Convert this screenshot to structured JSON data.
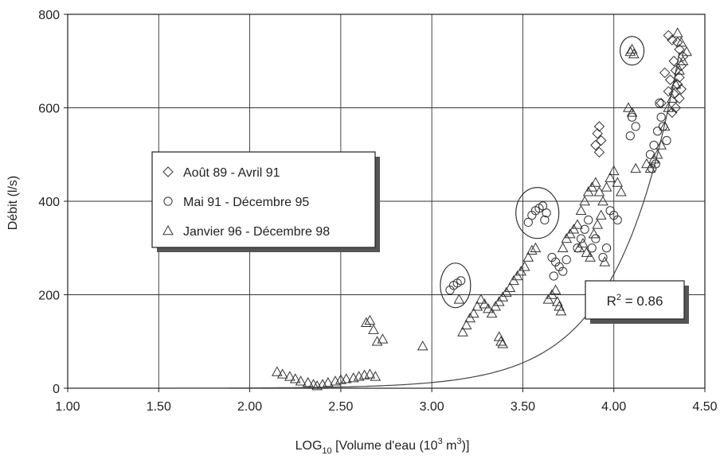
{
  "chart_data": {
    "type": "scatter",
    "xlabel": {
      "main": "LOG",
      "sub": "10",
      "rest": " [Volume d'eau (10",
      "sup1": "3",
      "mid": " m",
      "sup2": "3",
      "end": ")]"
    },
    "ylabel": "Débit (l/s)",
    "xlim": [
      1.0,
      4.5
    ],
    "ylim": [
      0,
      800
    ],
    "x_ticks": [
      1.0,
      1.5,
      2.0,
      2.5,
      3.0,
      3.5,
      4.0,
      4.5
    ],
    "x_tick_labels": [
      "1.00",
      "1.50",
      "2.00",
      "2.50",
      "3.00",
      "3.50",
      "4.00",
      "4.50"
    ],
    "y_ticks": [
      0,
      200,
      400,
      600,
      800
    ],
    "y_tick_labels": [
      "0",
      "200",
      "400",
      "600",
      "800"
    ],
    "grid": true,
    "legend_position": "middle-left",
    "annotation": {
      "main": "R",
      "sup": "2",
      "rest": " = 0.86"
    },
    "series": [
      {
        "name": "Août 89 - Avril 91",
        "marker": "diamond",
        "points": [
          [
            3.92,
            560
          ],
          [
            3.91,
            545
          ],
          [
            3.93,
            530
          ],
          [
            3.9,
            520
          ],
          [
            3.92,
            505
          ],
          [
            4.3,
            755
          ],
          [
            4.32,
            745
          ],
          [
            4.35,
            740
          ],
          [
            4.36,
            725
          ],
          [
            4.38,
            710
          ],
          [
            4.33,
            700
          ],
          [
            4.37,
            690
          ],
          [
            4.34,
            680
          ],
          [
            4.36,
            665
          ],
          [
            4.31,
            660
          ],
          [
            4.35,
            650
          ],
          [
            4.37,
            640
          ],
          [
            4.33,
            630
          ],
          [
            4.36,
            620
          ],
          [
            4.28,
            675
          ],
          [
            4.3,
            635
          ],
          [
            4.26,
            610
          ],
          [
            4.34,
            600
          ],
          [
            4.32,
            590
          ]
        ]
      },
      {
        "name": "Mai 91 - Décembre 95",
        "marker": "circle",
        "points": [
          [
            3.1,
            210
          ],
          [
            3.12,
            220
          ],
          [
            3.14,
            225
          ],
          [
            3.16,
            230
          ],
          [
            3.53,
            355
          ],
          [
            3.55,
            370
          ],
          [
            3.57,
            380
          ],
          [
            3.59,
            385
          ],
          [
            3.61,
            390
          ],
          [
            3.63,
            375
          ],
          [
            3.62,
            360
          ],
          [
            3.66,
            280
          ],
          [
            3.68,
            270
          ],
          [
            3.7,
            260
          ],
          [
            3.72,
            250
          ],
          [
            3.67,
            240
          ],
          [
            3.74,
            275
          ],
          [
            3.8,
            300
          ],
          [
            3.82,
            320
          ],
          [
            3.84,
            340
          ],
          [
            3.86,
            360
          ],
          [
            3.88,
            300
          ],
          [
            3.9,
            320
          ],
          [
            3.94,
            280
          ],
          [
            3.96,
            300
          ],
          [
            3.98,
            380
          ],
          [
            4.0,
            370
          ],
          [
            4.02,
            360
          ],
          [
            4.1,
            580
          ],
          [
            4.12,
            560
          ],
          [
            4.09,
            540
          ],
          [
            4.2,
            500
          ],
          [
            4.22,
            520
          ],
          [
            4.24,
            550
          ],
          [
            4.26,
            580
          ],
          [
            4.25,
            610
          ],
          [
            4.23,
            480
          ],
          [
            4.27,
            560
          ],
          [
            4.21,
            470
          ],
          [
            4.29,
            530
          ]
        ]
      },
      {
        "name": "Janvier 96 - Décembre 98",
        "marker": "triangle",
        "points": [
          [
            2.15,
            35
          ],
          [
            2.18,
            30
          ],
          [
            2.22,
            25
          ],
          [
            2.25,
            20
          ],
          [
            2.28,
            15
          ],
          [
            2.32,
            12
          ],
          [
            2.35,
            8
          ],
          [
            2.37,
            5
          ],
          [
            2.4,
            8
          ],
          [
            2.43,
            12
          ],
          [
            2.47,
            15
          ],
          [
            2.5,
            18
          ],
          [
            2.53,
            20
          ],
          [
            2.57,
            22
          ],
          [
            2.6,
            25
          ],
          [
            2.63,
            28
          ],
          [
            2.66,
            30
          ],
          [
            2.69,
            25
          ],
          [
            2.64,
            140
          ],
          [
            2.66,
            145
          ],
          [
            2.68,
            125
          ],
          [
            2.7,
            100
          ],
          [
            2.73,
            105
          ],
          [
            2.95,
            90
          ],
          [
            3.15,
            190
          ],
          [
            3.17,
            120
          ],
          [
            3.19,
            135
          ],
          [
            3.21,
            150
          ],
          [
            3.23,
            160
          ],
          [
            3.25,
            175
          ],
          [
            3.27,
            190
          ],
          [
            3.29,
            180
          ],
          [
            3.31,
            170
          ],
          [
            3.33,
            160
          ],
          [
            3.35,
            175
          ],
          [
            3.37,
            185
          ],
          [
            3.39,
            195
          ],
          [
            3.41,
            205
          ],
          [
            3.43,
            215
          ],
          [
            3.45,
            230
          ],
          [
            3.47,
            240
          ],
          [
            3.49,
            250
          ],
          [
            3.51,
            260
          ],
          [
            3.53,
            280
          ],
          [
            3.55,
            295
          ],
          [
            3.57,
            300
          ],
          [
            3.37,
            110
          ],
          [
            3.38,
            100
          ],
          [
            3.39,
            95
          ],
          [
            3.64,
            190
          ],
          [
            3.66,
            200
          ],
          [
            3.68,
            210
          ],
          [
            3.7,
            175
          ],
          [
            3.71,
            165
          ],
          [
            3.69,
            185
          ],
          [
            3.72,
            300
          ],
          [
            3.74,
            320
          ],
          [
            3.76,
            330
          ],
          [
            3.78,
            340
          ],
          [
            3.8,
            350
          ],
          [
            3.82,
            380
          ],
          [
            3.84,
            400
          ],
          [
            3.86,
            420
          ],
          [
            3.88,
            430
          ],
          [
            3.9,
            440
          ],
          [
            3.92,
            420
          ],
          [
            3.94,
            400
          ],
          [
            3.96,
            430
          ],
          [
            3.98,
            450
          ],
          [
            4.0,
            465
          ],
          [
            4.02,
            440
          ],
          [
            4.04,
            420
          ],
          [
            3.81,
            300
          ],
          [
            3.83,
            310
          ],
          [
            3.85,
            290
          ],
          [
            3.87,
            280
          ],
          [
            3.89,
            330
          ],
          [
            3.91,
            350
          ],
          [
            3.93,
            370
          ],
          [
            3.95,
            270
          ],
          [
            4.09,
            720
          ],
          [
            4.1,
            725
          ],
          [
            4.11,
            715
          ],
          [
            4.08,
            600
          ],
          [
            4.1,
            590
          ],
          [
            4.12,
            470
          ],
          [
            4.18,
            480
          ],
          [
            4.2,
            470
          ],
          [
            4.22,
            490
          ],
          [
            4.24,
            500
          ],
          [
            4.26,
            520
          ],
          [
            4.28,
            560
          ],
          [
            4.3,
            600
          ],
          [
            4.32,
            620
          ],
          [
            4.34,
            650
          ],
          [
            4.36,
            680
          ],
          [
            4.38,
            700
          ],
          [
            4.4,
            720
          ],
          [
            4.37,
            740
          ],
          [
            4.35,
            760
          ]
        ]
      }
    ]
  }
}
